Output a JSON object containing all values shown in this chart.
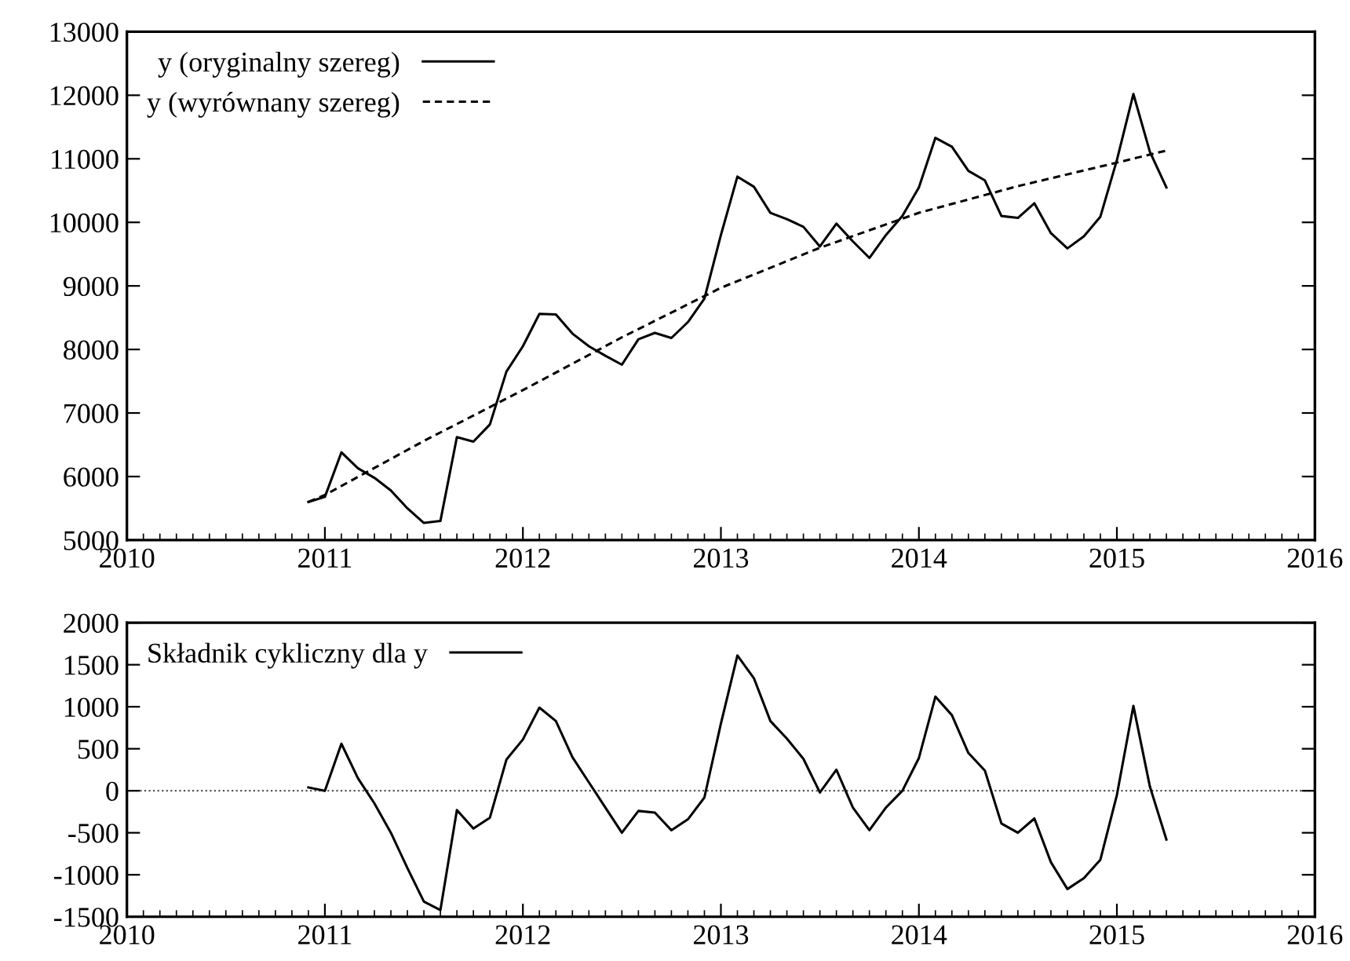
{
  "chart_data": [
    {
      "type": "line",
      "xlim": [
        "2010",
        "2016"
      ],
      "xticks": [
        "2010",
        "2011",
        "2012",
        "2013",
        "2014",
        "2015",
        "2016"
      ],
      "ylim": [
        5000,
        13000
      ],
      "yticks": [
        5000,
        6000,
        7000,
        8000,
        9000,
        10000,
        11000,
        12000,
        13000
      ],
      "grid": false,
      "legend": "top left",
      "marker": "none",
      "x": [
        "2010-12",
        "2011-01",
        "2011-02",
        "2011-03",
        "2011-04",
        "2011-05",
        "2011-06",
        "2011-07",
        "2011-08",
        "2011-09",
        "2011-10",
        "2011-11",
        "2011-12",
        "2012-01",
        "2012-02",
        "2012-03",
        "2012-04",
        "2012-05",
        "2012-06",
        "2012-07",
        "2012-08",
        "2012-09",
        "2012-10",
        "2012-11",
        "2012-12",
        "2013-01",
        "2013-02",
        "2013-03",
        "2013-04",
        "2013-05",
        "2013-06",
        "2013-07",
        "2013-08",
        "2013-09",
        "2013-10",
        "2013-11",
        "2013-12",
        "2014-01",
        "2014-02",
        "2014-03",
        "2014-04",
        "2014-05",
        "2014-06",
        "2014-07",
        "2014-08",
        "2014-09",
        "2014-10",
        "2014-11",
        "2014-12",
        "2015-01",
        "2015-02",
        "2015-03",
        "2015-04"
      ],
      "series": [
        {
          "name": "y (oryginalny szereg)",
          "color": "#000000",
          "line_style": "solid",
          "values": [
            5600,
            5680,
            6380,
            6130,
            5980,
            5780,
            5500,
            5270,
            5300,
            6620,
            6550,
            6820,
            7650,
            8050,
            8560,
            8550,
            8250,
            8050,
            7900,
            7760,
            8160,
            8260,
            8180,
            8430,
            8800,
            9800,
            10720,
            10560,
            10150,
            10050,
            9930,
            9620,
            9980,
            9700,
            9440,
            9800,
            10100,
            10550,
            11330,
            11190,
            10810,
            10660,
            10100,
            10070,
            10300,
            9830,
            9590,
            9780,
            10090,
            10980,
            12020,
            11110,
            10550
          ]
        },
        {
          "name": "y (wyrównany szereg)",
          "color": "#000000",
          "line_style": "dashed",
          "x": [
            "2010-12",
            "2011-01",
            "2011-07",
            "2012-01",
            "2012-07",
            "2013-01",
            "2013-07",
            "2014-01",
            "2014-07",
            "2015-01",
            "2015-04"
          ],
          "values": [
            5600,
            5710,
            6560,
            7360,
            8190,
            8970,
            9600,
            10150,
            10570,
            10940,
            11130
          ]
        }
      ]
    },
    {
      "type": "line",
      "xlim": [
        "2010",
        "2016"
      ],
      "xticks": [
        "2010",
        "2011",
        "2012",
        "2013",
        "2014",
        "2015",
        "2016"
      ],
      "ylim": [
        -1500,
        2000
      ],
      "yticks": [
        -1500,
        -1000,
        -500,
        0,
        500,
        1000,
        1500,
        2000
      ],
      "grid": false,
      "legend": "top left",
      "marker": "none",
      "ref_lines": [
        {
          "axis": "y",
          "value": 0,
          "label": null,
          "color": "#555555",
          "line_style": "dotted"
        }
      ],
      "x": [
        "2010-12",
        "2011-01",
        "2011-02",
        "2011-03",
        "2011-04",
        "2011-05",
        "2011-06",
        "2011-07",
        "2011-08",
        "2011-09",
        "2011-10",
        "2011-11",
        "2011-12",
        "2012-01",
        "2012-02",
        "2012-03",
        "2012-04",
        "2012-05",
        "2012-06",
        "2012-07",
        "2012-08",
        "2012-09",
        "2012-10",
        "2012-11",
        "2012-12",
        "2013-01",
        "2013-02",
        "2013-03",
        "2013-04",
        "2013-05",
        "2013-06",
        "2013-07",
        "2013-08",
        "2013-09",
        "2013-10",
        "2013-11",
        "2013-12",
        "2014-01",
        "2014-02",
        "2014-03",
        "2014-04",
        "2014-05",
        "2014-06",
        "2014-07",
        "2014-08",
        "2014-09",
        "2014-10",
        "2014-11",
        "2014-12",
        "2015-01",
        "2015-02",
        "2015-03",
        "2015-04"
      ],
      "series": [
        {
          "name": "Składnik cykliczny dla y",
          "color": "#000000",
          "line_style": "solid",
          "values": [
            40,
            0,
            560,
            150,
            -150,
            -500,
            -920,
            -1320,
            -1420,
            -230,
            -450,
            -320,
            370,
            610,
            990,
            830,
            400,
            100,
            -200,
            -500,
            -240,
            -260,
            -470,
            -340,
            -80,
            800,
            1610,
            1340,
            830,
            620,
            380,
            -20,
            250,
            -200,
            -470,
            -200,
            0,
            390,
            1120,
            900,
            450,
            240,
            -390,
            -500,
            -330,
            -850,
            -1170,
            -1040,
            -820,
            -50,
            1010,
            50,
            -580
          ]
        }
      ]
    }
  ]
}
